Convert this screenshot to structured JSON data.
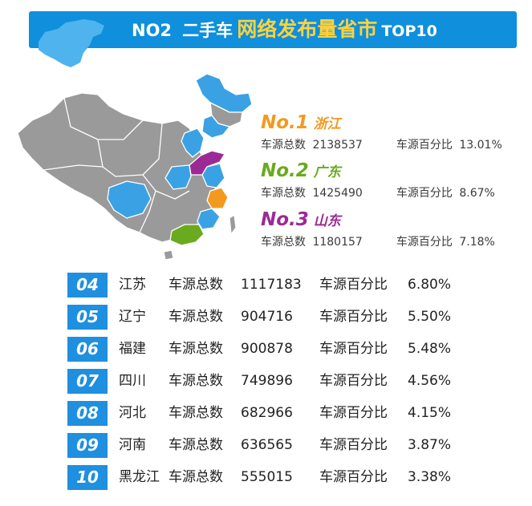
{
  "banner": {
    "part1": "NO2",
    "part2": "二手车",
    "part3": "网络发布量省市",
    "part4": "TOP10"
  },
  "colors": {
    "banner_blue": "#0f8fdc",
    "rank1": "#f39a1e",
    "rank2": "#6aaa1e",
    "rank3": "#9c2a96",
    "badge": "#1f8fe0",
    "map_grey": "#9a9a9a",
    "map_blue": "#3aa2e4"
  },
  "top3": [
    {
      "rank": "No.1",
      "province": "浙江",
      "total_label": "车源总数",
      "total": "2138537",
      "pct_label": "车源百分比",
      "pct": "13.01%"
    },
    {
      "rank": "No.2",
      "province": "广东",
      "total_label": "车源总数",
      "total": "1425490",
      "pct_label": "车源百分比",
      "pct": "8.67%"
    },
    {
      "rank": "No.3",
      "province": "山东",
      "total_label": "车源总数",
      "total": "1180157",
      "pct_label": "车源百分比",
      "pct": "7.18%"
    }
  ],
  "list": [
    {
      "num": "04",
      "province": "江苏",
      "total_label": "车源总数",
      "total": "1117183",
      "pct_label": "车源百分比",
      "pct": "6.80%"
    },
    {
      "num": "05",
      "province": "辽宁",
      "total_label": "车源总数",
      "total": "904716",
      "pct_label": "车源百分比",
      "pct": "5.50%"
    },
    {
      "num": "06",
      "province": "福建",
      "total_label": "车源总数",
      "total": "900878",
      "pct_label": "车源百分比",
      "pct": "5.48%"
    },
    {
      "num": "07",
      "province": "四川",
      "total_label": "车源总数",
      "total": "749896",
      "pct_label": "车源百分比",
      "pct": "4.56%"
    },
    {
      "num": "08",
      "province": "河北",
      "total_label": "车源总数",
      "total": "682966",
      "pct_label": "车源百分比",
      "pct": "4.15%"
    },
    {
      "num": "09",
      "province": "河南",
      "total_label": "车源总数",
      "total": "636565",
      "pct_label": "车源百分比",
      "pct": "3.87%"
    },
    {
      "num": "10",
      "province": "黑龙江",
      "total_label": "车源总数",
      "total": "555015",
      "pct_label": "车源百分比",
      "pct": "3.38%"
    }
  ]
}
